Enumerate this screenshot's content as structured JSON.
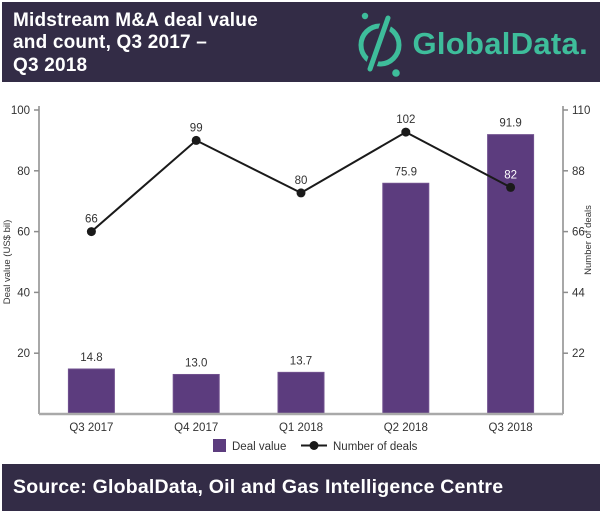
{
  "header": {
    "title": "Midstream M&A deal value\nand count, Q3 2017 –\nQ3 2018",
    "logo_text": "GlobalData.",
    "background_color": "#332C46",
    "brand_color": "#3EBD9B"
  },
  "chart_data": {
    "type": "combo",
    "title": "Midstream M&A deal value and count, Q3 2017 – Q3 2018",
    "categories": [
      "Q3 2017",
      "Q4 2017",
      "Q1 2018",
      "Q2 2018",
      "Q3 2018"
    ],
    "series": [
      {
        "name": "Deal value",
        "type": "bar",
        "axis": "left",
        "color": "#5C3C7E",
        "values": [
          14.8,
          13.0,
          13.7,
          75.9,
          91.9
        ],
        "labels": [
          "14.8",
          "13.0",
          "13.7",
          "75.9",
          "91.9"
        ]
      },
      {
        "name": "Number of deals",
        "type": "line",
        "axis": "right",
        "color": "#1A1A1A",
        "values": [
          66,
          99,
          80,
          102,
          82
        ],
        "labels": [
          "66",
          "99",
          "80",
          "102",
          "82"
        ]
      }
    ],
    "left_axis": {
      "label": "Deal value (US$ bil)",
      "min": 0,
      "max": 100,
      "ticks": [
        20,
        40,
        60,
        80,
        100
      ]
    },
    "right_axis": {
      "label": "Number of deals",
      "min": 0,
      "max": 110,
      "ticks": [
        22,
        44,
        66,
        88,
        110
      ]
    },
    "grid": false,
    "legend_position": "bottom"
  },
  "footer": {
    "source": "Source: GlobalData, Oil and Gas Intelligence Centre"
  }
}
